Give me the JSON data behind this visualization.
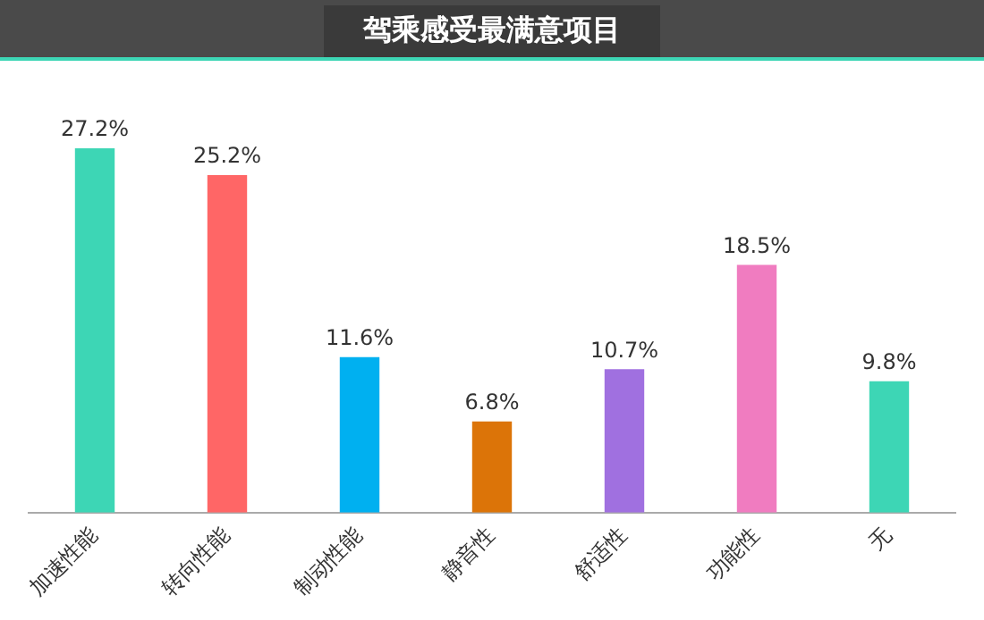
{
  "chart_data": {
    "type": "bar",
    "title": "驾乘感受最满意项目",
    "categories": [
      "加速性能",
      "转向性能",
      "制动性能",
      "静音性",
      "舒适性",
      "功能性",
      "无"
    ],
    "values": [
      27.2,
      25.2,
      11.6,
      6.8,
      10.7,
      18.5,
      9.8
    ],
    "colors": [
      "#3dd6b5",
      "#ff6666",
      "#00b0f0",
      "#dc7408",
      "#a070e0",
      "#f07cc0",
      "#3dd6b5"
    ],
    "value_labels": [
      "27.2%",
      "25.2%",
      "11.6%",
      "6.8%",
      "10.7%",
      "18.5%",
      "9.8%"
    ],
    "grid": false,
    "legend": false
  }
}
